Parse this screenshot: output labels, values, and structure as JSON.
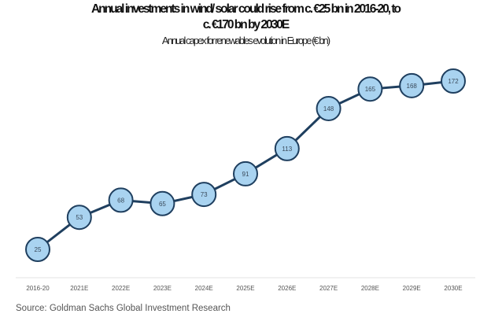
{
  "chart_data": {
    "type": "line",
    "title_lines": [
      "Annual investments in wind/ solar could rise from c. €25 bn in 2016-20, to",
      "c. €170 bn by 2030E"
    ],
    "subtitle": "Annual capex for renewables evolution in Europe (€ bn)",
    "xlabel": "",
    "ylabel": "",
    "categories": [
      "2016-20",
      "2021E",
      "2022E",
      "2023E",
      "2024E",
      "2025E",
      "2026E",
      "2027E",
      "2028E",
      "2029E",
      "2030E"
    ],
    "series": [
      {
        "name": "Annual capex for renewables (€ bn)",
        "values": [
          25,
          53,
          68,
          65,
          73,
          91,
          113,
          148,
          165,
          168,
          172
        ],
        "data_labels": [
          "25",
          "53",
          "68",
          "65",
          "73",
          "91",
          "113",
          "148",
          "165",
          "168",
          "172"
        ]
      }
    ],
    "ylim": [
      0,
      200
    ],
    "grid": false,
    "legend": "none",
    "colors": {
      "line": "#1f3f5f",
      "marker_fill": "#a9d3f0",
      "marker_stroke": "#1f3f5f",
      "axis": "#e3e3e3"
    },
    "source": "Source: Goldman Sachs Global Investment Research"
  }
}
